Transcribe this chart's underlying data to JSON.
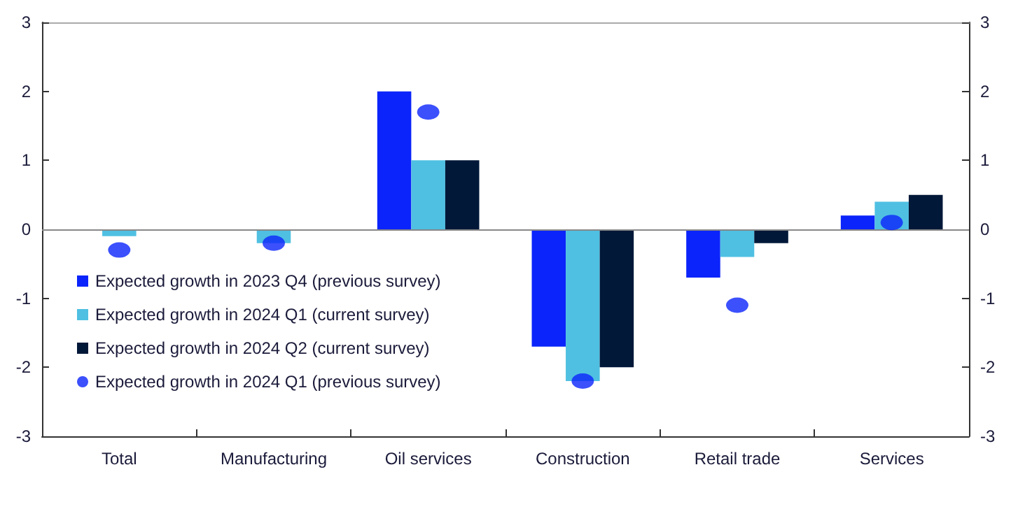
{
  "chart_data": {
    "type": "bar",
    "categories": [
      "Total",
      "Manufacturing",
      "Oil services",
      "Construction",
      "Retail trade",
      "Services"
    ],
    "series": [
      {
        "name": "Expected growth in 2023 Q4 (previous survey)",
        "color": "#0b24fb",
        "values": [
          0,
          0,
          2,
          -1.7,
          -0.7,
          0.2
        ]
      },
      {
        "name": "Expected growth in 2024 Q1 (current survey)",
        "color": "#4fc0e2",
        "values": [
          -0.1,
          -0.2,
          1,
          -2.2,
          -0.4,
          0.4
        ]
      },
      {
        "name": "Expected growth in 2024 Q2 (current survey)",
        "color": "#011839",
        "values": [
          0,
          0,
          1,
          -2,
          -0.2,
          0.5
        ]
      },
      {
        "name": "Expected growth in 2024 Q1 (previous survey)",
        "color": "#0b24fb",
        "type": "scatter",
        "marker": "circle",
        "values": [
          -0.3,
          -0.2,
          1.7,
          -2.2,
          -1.1,
          0.1
        ]
      }
    ],
    "ylim": [
      -3,
      3
    ],
    "yticks": [
      -3,
      -2,
      -1,
      0,
      1,
      2,
      3
    ],
    "y2lim": [
      -3,
      3
    ],
    "y2ticks": [
      -3,
      -2,
      -1,
      0,
      1,
      2,
      3
    ],
    "ref_lines": [
      {
        "axis": "y",
        "value": 0,
        "color": "#888888"
      }
    ],
    "legend": "left"
  }
}
